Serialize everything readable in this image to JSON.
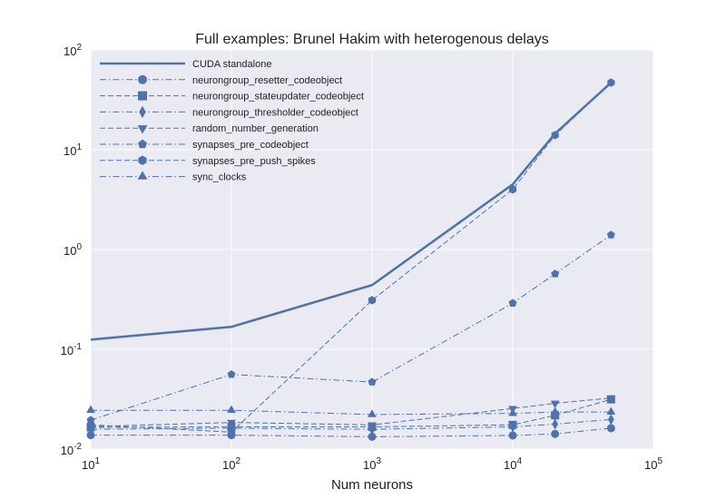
{
  "chart_data": {
    "type": "line",
    "title": "Full examples: Brunel Hakim with heterogenous delays",
    "xlabel": "Num neurons",
    "ylabel": "",
    "xscale": "log",
    "yscale": "log",
    "xlim": [
      10,
      100000
    ],
    "ylim": [
      0.01,
      100
    ],
    "grid": true,
    "legend_position": "top-left",
    "xticks": [
      {
        "base": "10",
        "exp": "1",
        "value": 10
      },
      {
        "base": "10",
        "exp": "2",
        "value": 100
      },
      {
        "base": "10",
        "exp": "3",
        "value": 1000
      },
      {
        "base": "10",
        "exp": "4",
        "value": 10000
      },
      {
        "base": "10",
        "exp": "5",
        "value": 100000
      }
    ],
    "yticks": [
      {
        "base": "10",
        "exp": "-2",
        "value": 0.01
      },
      {
        "base": "10",
        "exp": "-1",
        "value": 0.1
      },
      {
        "base": "10",
        "exp": "0",
        "value": 1
      },
      {
        "base": "10",
        "exp": "1",
        "value": 10
      },
      {
        "base": "10",
        "exp": "2",
        "value": 100
      }
    ],
    "x": [
      10,
      100,
      1000,
      10000,
      20000,
      50000
    ],
    "series": [
      {
        "name": "CUDA standalone",
        "linestyle": "solid",
        "marker": "none",
        "values": [
          0.125,
          0.168,
          0.44,
          4.5,
          14.5,
          47
        ]
      },
      {
        "name": "neurongroup_resetter_codeobject",
        "linestyle": "dashdot",
        "marker": "circle",
        "values": [
          0.0138,
          0.0138,
          0.0133,
          0.0137,
          0.0142,
          0.0162
        ]
      },
      {
        "name": "neurongroup_stateupdater_codeobject",
        "linestyle": "dash",
        "marker": "square",
        "values": [
          0.0165,
          0.0167,
          0.0167,
          0.0175,
          0.0218,
          0.0315
        ]
      },
      {
        "name": "neurongroup_thresholder_codeobject",
        "linestyle": "dashdot",
        "marker": "diamond",
        "values": [
          0.0158,
          0.0162,
          0.0158,
          0.0167,
          0.0178,
          0.0198
        ]
      },
      {
        "name": "random_number_generation",
        "linestyle": "dash",
        "marker": "triangle_down",
        "values": [
          0.0168,
          0.0185,
          0.0175,
          0.0255,
          0.0288,
          0.0325
        ]
      },
      {
        "name": "synapses_pre_codeobject",
        "linestyle": "dashdot",
        "marker": "pentagon",
        "values": [
          0.0195,
          0.056,
          0.047,
          0.29,
          0.57,
          1.4
        ]
      },
      {
        "name": "synapses_pre_push_spikes",
        "linestyle": "dash",
        "marker": "hexagon",
        "values": [
          0.0175,
          0.0148,
          0.31,
          4.0,
          14.0,
          47
        ]
      },
      {
        "name": "sync_clocks",
        "linestyle": "dashdot",
        "marker": "triangle_up",
        "values": [
          0.0245,
          0.0245,
          0.0222,
          0.0228,
          0.0235,
          0.0235
        ]
      }
    ]
  },
  "colors": {
    "line": "#4c72b0",
    "plot_bg": "#eaeaf2",
    "grid": "#ffffff",
    "legend_text": "#222222"
  }
}
